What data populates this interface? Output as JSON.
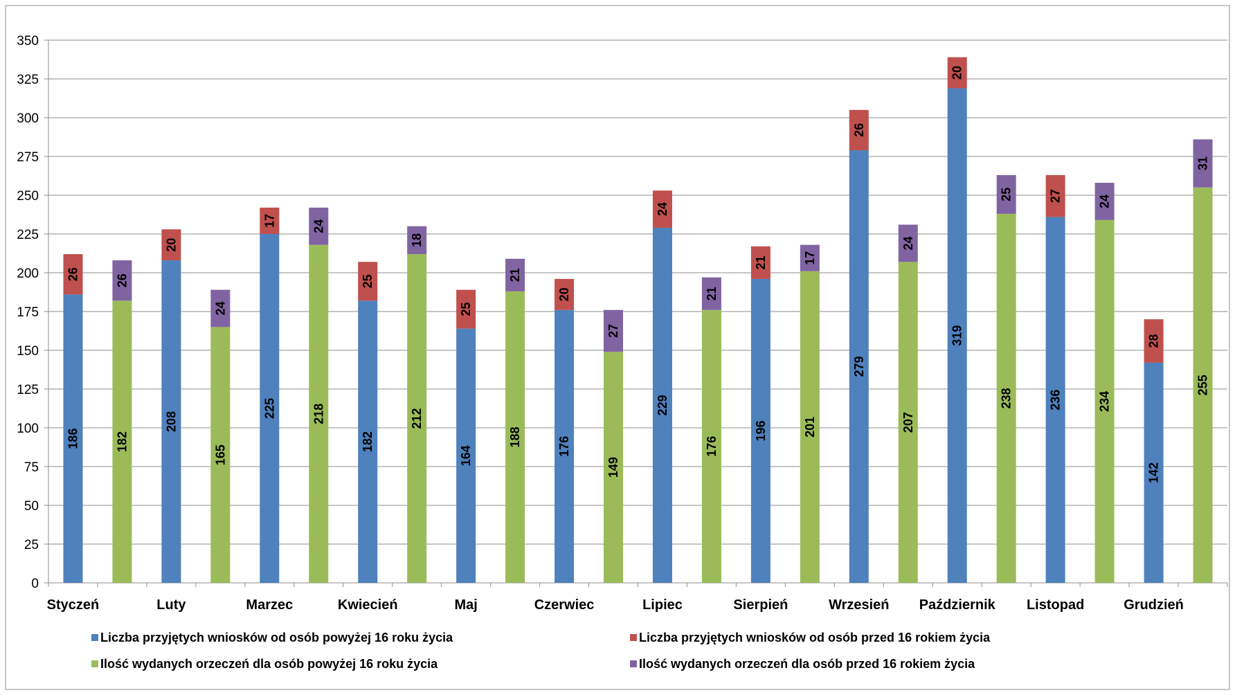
{
  "chart_data": {
    "type": "bar",
    "title": "",
    "xlabel": "",
    "ylabel": "",
    "ylim": [
      0,
      350
    ],
    "ytick_step": 25,
    "grid": true,
    "legend_position": "bottom",
    "categories": [
      "Styczeń",
      "Luty",
      "Marzec",
      "Kwiecień",
      "Maj",
      "Czerwiec",
      "Lipiec",
      "Sierpień",
      "Wrzesień",
      "Październik",
      "Listopad",
      "Grudzień"
    ],
    "series": [
      {
        "name": "Liczba przyjętych wniosków od osób powyżej 16 roku życia",
        "color": "#4F81BD",
        "stack": "wnioski",
        "values": [
          186,
          208,
          225,
          182,
          164,
          176,
          229,
          196,
          279,
          319,
          236,
          142
        ]
      },
      {
        "name": "Liczba przyjętych wniosków od osób przed 16 rokiem życia",
        "color": "#C0504D",
        "stack": "wnioski",
        "values": [
          26,
          20,
          17,
          25,
          25,
          20,
          24,
          21,
          26,
          20,
          27,
          28
        ]
      },
      {
        "name": "Ilość wydanych orzeczeń dla osób powyżej 16 roku życia",
        "color": "#9BBB59",
        "stack": "orzeczenia",
        "values": [
          182,
          165,
          218,
          212,
          188,
          149,
          176,
          201,
          207,
          238,
          234,
          255
        ]
      },
      {
        "name": "Ilość wydanych orzeczeń dla osób przed 16 rokiem życia",
        "color": "#8064A2",
        "stack": "orzeczenia",
        "values": [
          26,
          24,
          24,
          18,
          21,
          27,
          21,
          17,
          24,
          25,
          24,
          31
        ]
      }
    ]
  }
}
